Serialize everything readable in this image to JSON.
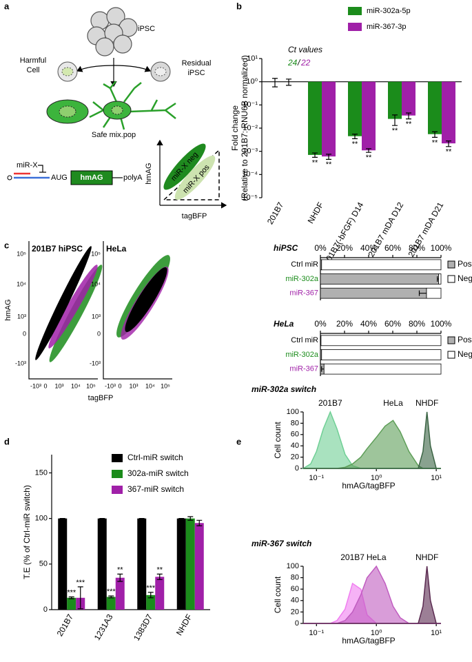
{
  "panels": [
    "a",
    "b",
    "c",
    "d",
    "e"
  ],
  "diagram": {
    "ipsc": "iPSC",
    "harmful": [
      "Harmful",
      "Cell"
    ],
    "residual": [
      "Residual",
      "iPSC"
    ],
    "safe": "Safe mix.pop",
    "mirx": "miR-X",
    "aug": "AUG",
    "hmag_box": "hmAG",
    "polya": "polyA",
    "y_axis": "hmAG",
    "x_axis": "tagBFP",
    "neg": "miR-X neg",
    "pos": "miR-X pos"
  },
  "flow": {
    "titles": [
      "201B7 hiPSC",
      "HeLa"
    ],
    "ylabel": "hmAG",
    "xlabel": "tagBFP",
    "yticks": [
      "10⁵",
      "10⁴",
      "10³",
      "0",
      "-10³"
    ],
    "xticks": [
      "-10³",
      "0",
      "10³",
      "10⁴",
      "10⁵"
    ]
  },
  "chart_data": [
    {
      "type": "bar",
      "ylabel": [
        "Fold change",
        "(Relative to 201B7: RNU6B normalized)"
      ],
      "categories": [
        "201B7",
        "NHDF",
        "201B7(-bFGF) D14",
        "201B7 mDA D12",
        "201B7 mDA D21"
      ],
      "series": [
        {
          "name": "miR-302a-5p",
          "color": "#1b8c1b",
          "values": [
            1,
            0.0007,
            0.0045,
            0.025,
            0.0055
          ],
          "errors": [
            0.4,
            0.00015,
            0.001,
            0.012,
            0.0015
          ]
        },
        {
          "name": "miR-367-3p",
          "color": "#a020a8",
          "values": [
            1,
            0.0006,
            0.0011,
            0.035,
            0.0022
          ],
          "errors": [
            0.3,
            0.00015,
            0.0002,
            0.01,
            0.0006
          ]
        }
      ],
      "significance": [
        [
          null,
          "**",
          "**",
          "**",
          "**"
        ],
        [
          null,
          "**",
          "**",
          "**",
          "**"
        ]
      ],
      "baseline": 1,
      "log_y": true,
      "ylim": [
        1e-05,
        10
      ],
      "yticks": [
        {
          "value": 1e-05,
          "label": "10⁻⁵"
        },
        {
          "value": 0.0001,
          "label": "10⁻⁴"
        },
        {
          "value": 0.001,
          "label": "10⁻³"
        },
        {
          "value": 0.01,
          "label": "10⁻²"
        },
        {
          "value": 0.1,
          "label": "10⁻¹"
        },
        {
          "value": 1,
          "label": "10⁰"
        },
        {
          "value": 10,
          "label": "10¹"
        }
      ],
      "ct_title": "Ct values",
      "ct_values": [
        24,
        22
      ],
      "ct_separator": "/"
    },
    {
      "type": "stacked_hbar",
      "title": "hiPSC",
      "categories": [
        "Ctrl miR",
        "miR-302a",
        "miR-367"
      ],
      "category_colors": [
        "#000000",
        "#1b8c1b",
        "#a020a8"
      ],
      "series": [
        {
          "name": "Pos",
          "color": "#b0b0b0",
          "values": [
            1,
            98,
            88
          ],
          "errors": [
            0,
            1,
            6
          ]
        },
        {
          "name": "Neg",
          "color": "#ffffff",
          "values": [
            99,
            2,
            12
          ]
        }
      ],
      "xlim": [
        0,
        100
      ],
      "xticks": [
        {
          "value": 0,
          "label": "0%"
        },
        {
          "value": 20,
          "label": "20%"
        },
        {
          "value": 40,
          "label": "40%"
        },
        {
          "value": 60,
          "label": "60%"
        },
        {
          "value": 80,
          "label": "80%"
        },
        {
          "value": 100,
          "label": "100%"
        }
      ]
    },
    {
      "type": "stacked_hbar",
      "title": "HeLa",
      "categories": [
        "Ctrl miR",
        "miR-302a",
        "miR-367"
      ],
      "category_colors": [
        "#000000",
        "#1b8c1b",
        "#a020a8"
      ],
      "series": [
        {
          "name": "Pos",
          "color": "#b0b0b0",
          "values": [
            0.5,
            1,
            3
          ],
          "errors": [
            0,
            0,
            2
          ]
        },
        {
          "name": "Neg",
          "color": "#ffffff",
          "values": [
            99.5,
            99,
            97
          ]
        }
      ],
      "xlim": [
        0,
        100
      ],
      "xticks": [
        {
          "value": 0,
          "label": "0%"
        },
        {
          "value": 20,
          "label": "20%"
        },
        {
          "value": 40,
          "label": "40%"
        },
        {
          "value": 60,
          "label": "60%"
        },
        {
          "value": 80,
          "label": "80%"
        },
        {
          "value": 100,
          "label": "100%"
        }
      ]
    },
    {
      "type": "grouped_bar",
      "ylabel": "T.E (% of Ctrl-miR switch)",
      "categories": [
        "201B7",
        "1231A3",
        "1383D7",
        "NHDF"
      ],
      "series": [
        {
          "name": "Ctrl-miR switch",
          "color": "#000000",
          "values": [
            100,
            100,
            100,
            100
          ],
          "errors": [
            0,
            0,
            0,
            0
          ]
        },
        {
          "name": "302a-miR switch",
          "color": "#1b8c1b",
          "values": [
            13,
            14,
            16,
            100
          ],
          "errors": [
            1,
            1,
            3,
            2
          ]
        },
        {
          "name": "367-miR switch",
          "color": "#a020a8",
          "values": [
            13,
            35,
            36,
            95
          ],
          "errors": [
            12,
            4,
            3,
            3
          ]
        }
      ],
      "significance": [
        [
          null,
          null,
          null,
          null
        ],
        [
          "***",
          "***",
          "***",
          null
        ],
        [
          "***",
          "**",
          "**",
          null
        ]
      ],
      "ylim": [
        0,
        170
      ],
      "yticks": [
        0,
        50,
        100,
        150
      ]
    },
    {
      "type": "area_log",
      "title": "miR-302a switch",
      "xlabel": "hmAG/tagBFP",
      "ylabel": "Cell count",
      "x": [
        0.06,
        0.08,
        0.1,
        0.13,
        0.17,
        0.22,
        0.3,
        0.4,
        0.55,
        0.7,
        1,
        1.4,
        1.9,
        2.5,
        3.5,
        5,
        6,
        7,
        8,
        10,
        12
      ],
      "series": [
        {
          "name": "201B7",
          "color": "#6fcf95",
          "values": [
            0,
            8,
            30,
            70,
            100,
            70,
            25,
            5,
            0,
            0,
            0,
            0,
            0,
            0,
            0,
            0,
            0,
            0,
            0,
            0,
            0
          ]
        },
        {
          "name": "HeLa",
          "color": "#5e9e58",
          "values": [
            0,
            0,
            0,
            0,
            0,
            0,
            2,
            8,
            20,
            35,
            55,
            75,
            85,
            65,
            30,
            5,
            0,
            0,
            0,
            0,
            0
          ]
        },
        {
          "name": "NHDF",
          "color": "#3b6444",
          "values": [
            0,
            0,
            0,
            0,
            0,
            0,
            0,
            0,
            0,
            0,
            0,
            0,
            0,
            0,
            0,
            0,
            30,
            100,
            40,
            0,
            0
          ]
        }
      ],
      "xlim": [
        0.06,
        12
      ],
      "xticks": [
        {
          "value": 0.1,
          "label": "10⁻¹"
        },
        {
          "value": 1,
          "label": "10⁰"
        },
        {
          "value": 10,
          "label": "10¹"
        }
      ],
      "ylim": [
        0,
        100
      ],
      "yticks": [
        0,
        20,
        40,
        60,
        80,
        100
      ]
    },
    {
      "type": "area_log",
      "title": "miR-367 switch",
      "xlabel": "hmAG/tagBFP",
      "ylabel": "Cell count",
      "x": [
        0.06,
        0.08,
        0.1,
        0.13,
        0.17,
        0.22,
        0.3,
        0.4,
        0.55,
        0.7,
        1,
        1.4,
        1.9,
        2.5,
        3.5,
        5,
        6,
        7,
        8,
        10,
        12
      ],
      "series": [
        {
          "name": "201B7",
          "color": "#f07ef0",
          "values": [
            0,
            0,
            0,
            0,
            0,
            5,
            25,
            70,
            60,
            15,
            0,
            0,
            0,
            0,
            0,
            0,
            0,
            0,
            0,
            0,
            0
          ]
        },
        {
          "name": "HeLa",
          "color": "#c05cc0",
          "values": [
            0,
            0,
            0,
            0,
            0,
            0,
            5,
            20,
            50,
            80,
            100,
            70,
            30,
            10,
            0,
            0,
            0,
            0,
            0,
            0,
            0
          ]
        },
        {
          "name": "NHDF",
          "color": "#5a2a50",
          "values": [
            0,
            0,
            0,
            0,
            0,
            0,
            0,
            0,
            0,
            0,
            0,
            0,
            0,
            0,
            0,
            0,
            30,
            100,
            40,
            0,
            0
          ]
        }
      ],
      "xlim": [
        0.06,
        12
      ],
      "xticks": [
        {
          "value": 0.1,
          "label": "10⁻¹"
        },
        {
          "value": 1,
          "label": "10⁰"
        },
        {
          "value": 10,
          "label": "10¹"
        }
      ],
      "ylim": [
        0,
        100
      ],
      "yticks": [
        0,
        20,
        40,
        60,
        80,
        100
      ]
    }
  ]
}
